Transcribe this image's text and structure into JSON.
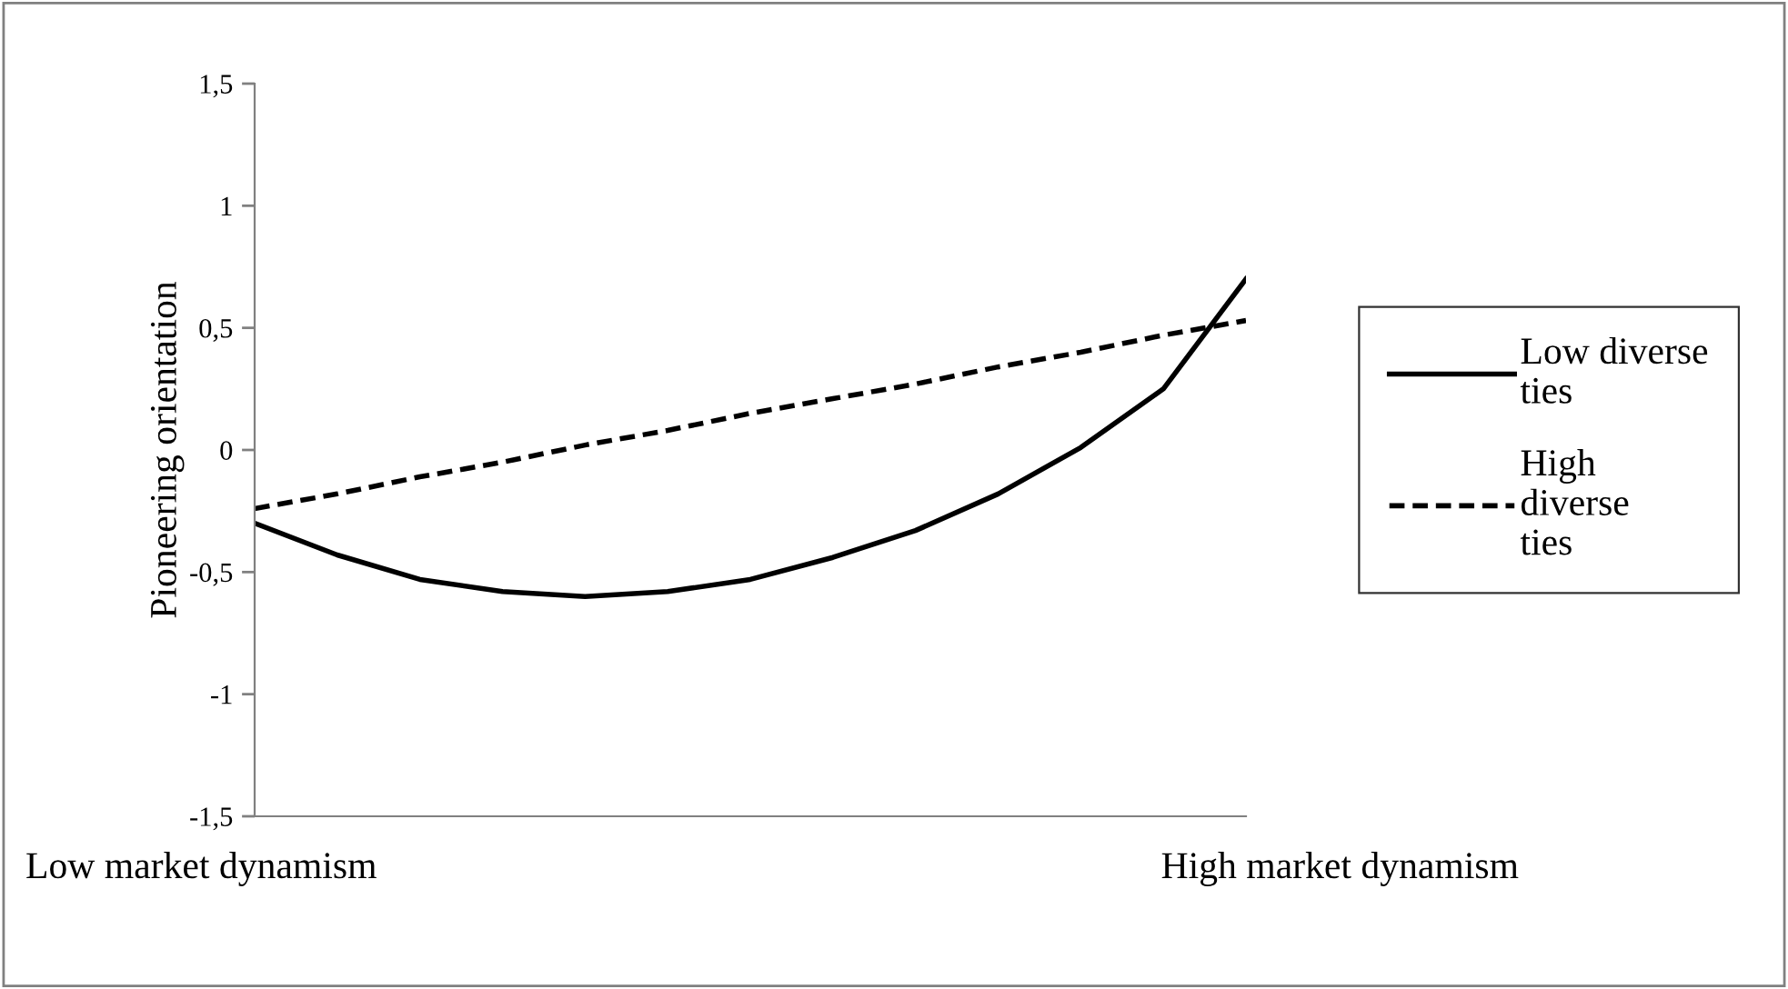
{
  "chart_data": {
    "type": "line",
    "ylabel": "Pioneering orientation",
    "categories": [
      null,
      null,
      null,
      null,
      null,
      null,
      null,
      null,
      null,
      null,
      null,
      null,
      null
    ],
    "series": [
      {
        "name": "Low diverse ties",
        "color": "#000000",
        "line_style": "solid",
        "values": [
          -0.3,
          -0.43,
          -0.53,
          -0.58,
          -0.6,
          -0.58,
          -0.53,
          -0.44,
          -0.33,
          -0.18,
          0.01,
          0.25,
          0.7
        ]
      },
      {
        "name": "High diverse ties",
        "color": "#000000",
        "line_style": "dashed",
        "values": [
          -0.24,
          -0.18,
          -0.11,
          -0.05,
          0.02,
          0.08,
          0.15,
          0.21,
          0.27,
          0.34,
          0.4,
          0.47,
          0.53
        ]
      }
    ],
    "ylim": [
      -1.5,
      1.5
    ],
    "yticks": [
      {
        "value": -1.5,
        "label": "-1,5"
      },
      {
        "value": -1,
        "label": "-1"
      },
      {
        "value": -0.5,
        "label": "-0,5"
      },
      0,
      {
        "value": 0.5,
        "label": "0,5"
      },
      1,
      {
        "value": 1.5,
        "label": "1,5"
      }
    ],
    "annotations": [
      "Low market dynamism",
      "High market dynamism"
    ],
    "legend": "right",
    "grid": false,
    "marker": "none"
  }
}
